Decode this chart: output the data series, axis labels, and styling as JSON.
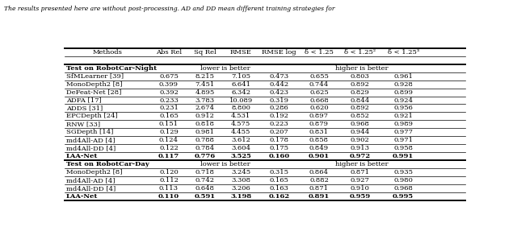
{
  "caption": "The results presented here are without post-processing. AD and DD mean different training strategies for",
  "columns": [
    "Methods",
    "Abs Rel",
    "Sq Rel",
    "RMSE",
    "RMSE log",
    "δ < 1.25",
    "δ < 1.25²",
    "δ < 1.25³"
  ],
  "col_header_lower": "lower is better",
  "col_header_higher": "higher is better",
  "section1_title": "Test on RobotCar-Night",
  "section2_title": "Test on RobotCar-Day",
  "night_rows": [
    [
      "SfMLearner [39]",
      "0.675",
      "8.215",
      "7.105",
      "0.473",
      "0.655",
      "0.803",
      "0.961"
    ],
    [
      "MonoDepth2 [8]",
      "0.399",
      "7.451",
      "6.641",
      "0.442",
      "0.744",
      "0.892",
      "0.928"
    ],
    [
      "DeFeat-Net [28]",
      "0.392",
      "4.895",
      "6.342",
      "0.423",
      "0.625",
      "0.829",
      "0.899"
    ],
    [
      "ADFA [17]",
      "0.233",
      "3.783",
      "10.089",
      "0.319",
      "0.668",
      "0.844",
      "0.924"
    ],
    [
      "ADDS [31]",
      "0.231",
      "2.674",
      "8.800",
      "0.286",
      "0.620",
      "0.892",
      "0.956"
    ],
    [
      "EPCDepth [24]",
      "0.165",
      "0.912",
      "4.531",
      "0.192",
      "0.897",
      "0.852",
      "0.921"
    ],
    [
      "RNW [33]",
      "0.151",
      "0.818",
      "4.575",
      "0.223",
      "0.879",
      "0.968",
      "0.989"
    ],
    [
      "SGDepth [14]",
      "0.129",
      "0.981",
      "4.455",
      "0.207",
      "0.831",
      "0.944",
      "0.977"
    ],
    [
      "md4All-AD [4]",
      "0.124",
      "0.788",
      "3.612",
      "0.178",
      "0.858",
      "0.902",
      "0.971"
    ],
    [
      "md4All-DD [4]",
      "0.122",
      "0.784",
      "3.604",
      "0.175",
      "0.849",
      "0.913",
      "0.958"
    ],
    [
      "LAA-Net",
      "0.117",
      "0.776",
      "3.525",
      "0.160",
      "0.901",
      "0.972",
      "0.991"
    ]
  ],
  "night_bold": [
    10
  ],
  "day_rows": [
    [
      "MonoDepth2 [8]",
      "0.120",
      "0.718",
      "3.245",
      "0.315",
      "0.864",
      "0.871",
      "0.935"
    ],
    [
      "md4All-AD [4]",
      "0.112",
      "0.742",
      "3.308",
      "0.165",
      "0.882",
      "0.927",
      "0.980"
    ],
    [
      "md4All-DD [4]",
      "0.113",
      "0.648",
      "3.206",
      "0.163",
      "0.871",
      "0.910",
      "0.968"
    ],
    [
      "LAA-Net",
      "0.110",
      "0.591",
      "3.198",
      "0.162",
      "0.891",
      "0.959",
      "0.995"
    ]
  ],
  "day_bold": [
    3
  ],
  "bg_color": "white",
  "text_color": "black"
}
